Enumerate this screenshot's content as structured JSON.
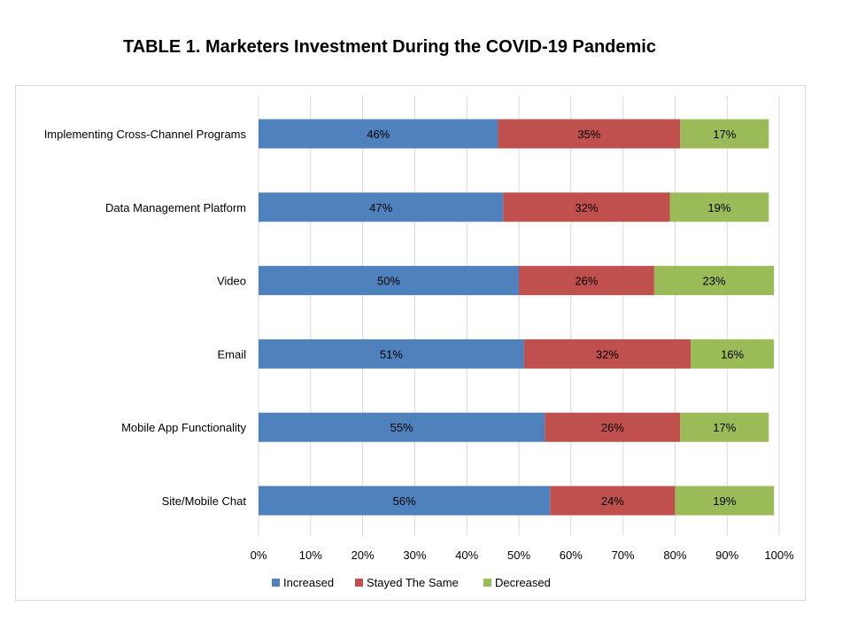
{
  "chart_data": {
    "type": "bar",
    "orientation": "horizontal",
    "stacked": true,
    "title": "TABLE 1.   Marketers Investment During the COVID-19 Pandemic",
    "categories": [
      "Implementing Cross-Channel Programs",
      "Data Management Platform",
      "Video",
      "Email",
      "Mobile App Functionality",
      "Site/Mobile Chat"
    ],
    "series": [
      {
        "name": "Increased",
        "color": "#4F81BD",
        "values": [
          46,
          47,
          50,
          51,
          55,
          56
        ],
        "labels": [
          "46%",
          "47%",
          "50%",
          "51%",
          "55%",
          "56%"
        ]
      },
      {
        "name": "Stayed The Same",
        "color": "#C0504D",
        "values": [
          35,
          32,
          26,
          32,
          26,
          24
        ],
        "labels": [
          "35%",
          "32%",
          "26%",
          "32%",
          "26%",
          "24%"
        ]
      },
      {
        "name": "Decreased",
        "color": "#9BBB59",
        "values": [
          17,
          19,
          23,
          16,
          17,
          19
        ],
        "labels": [
          "17%",
          "19%",
          "23%",
          "16%",
          "17%",
          "19%"
        ]
      }
    ],
    "xlim": [
      0,
      100
    ],
    "xticks": [
      "0%",
      "10%",
      "20%",
      "30%",
      "40%",
      "50%",
      "60%",
      "70%",
      "80%",
      "90%",
      "100%"
    ],
    "grid": true,
    "legend": "bottom"
  }
}
